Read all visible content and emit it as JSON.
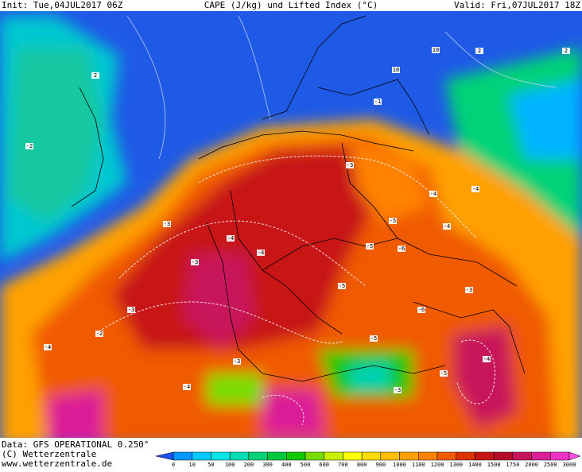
{
  "header": {
    "init": "Init: Tue,04JUL2017 06Z",
    "title": "CAPE (J/kg) und Lifted Index (°C)",
    "valid": "Valid: Fri,07JUL2017 18Z"
  },
  "footer": {
    "data": "Data: GFS OPERATIONAL 0.250°",
    "copyright": "(C) Wetterzentrale",
    "url": "www.wetterzentrale.de"
  },
  "colorbar": {
    "labels": [
      "0",
      "10",
      "50",
      "100",
      "200",
      "300",
      "400",
      "500",
      "600",
      "700",
      "800",
      "900",
      "1000",
      "1100",
      "1200",
      "1300",
      "1400",
      "1500",
      "1750",
      "2000",
      "2500",
      "3000"
    ],
    "colors": [
      "#1e50f0",
      "#0096ff",
      "#00c8ff",
      "#00e6e6",
      "#00dcb4",
      "#00d278",
      "#00c83c",
      "#14c800",
      "#78dc00",
      "#c8f000",
      "#ffff00",
      "#ffdc00",
      "#ffbe00",
      "#ffa000",
      "#ff8200",
      "#f05a00",
      "#dc3200",
      "#c81414",
      "#b40a28",
      "#c8145a",
      "#dc1e96",
      "#f032c8",
      "#ff50e6"
    ]
  },
  "map_labels": [
    "10",
    "10",
    "2",
    "2",
    "-2",
    "2",
    "-1",
    "-3",
    "-4",
    "-4",
    "-3",
    "-5",
    "-4",
    "-6",
    "-5",
    "-3",
    "-4",
    "-5",
    "-3",
    "-4",
    "-6",
    "-3",
    "-5",
    "-4",
    "-5",
    "-3",
    "-4",
    "-2",
    "-4",
    "-3"
  ]
}
